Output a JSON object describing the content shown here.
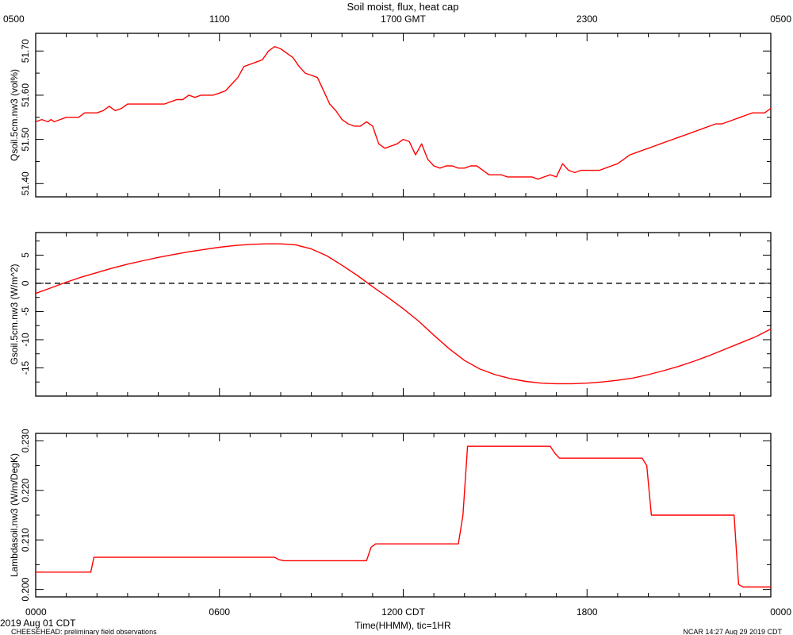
{
  "title": "Soil moist, flux, heat cap",
  "top_axis": {
    "label": "",
    "ticks": [
      {
        "hour": 0,
        "label": "0500"
      },
      {
        "hour": 6,
        "label": "1100"
      },
      {
        "hour": 12,
        "label": "1700 GMT"
      },
      {
        "hour": 18,
        "label": "2300"
      },
      {
        "hour": 24,
        "label": "0500"
      }
    ]
  },
  "bottom_axis": {
    "label": "Time(HHMM), tic=1HR",
    "ticks": [
      {
        "hour": 0,
        "label": "0000"
      },
      {
        "hour": 6,
        "label": "0600"
      },
      {
        "hour": 12,
        "label": "1200 CDT"
      },
      {
        "hour": 18,
        "label": "1800"
      },
      {
        "hour": 24,
        "label": "0000"
      }
    ]
  },
  "footer": {
    "date": "2019 Aug 01 CDT",
    "left": "CHEESEHEAD: preliminary field observations",
    "right": "NCAR 14:27 Aug 29 2019 CDT"
  },
  "line_color": "#ff0000",
  "chart_data": [
    {
      "type": "line",
      "name": "Qsoil",
      "ylabel": "Qsoil.5cm.nw3 (vol%)",
      "xlim": [
        0,
        24
      ],
      "ylim": [
        51.37,
        51.74
      ],
      "yticks": [
        51.4,
        51.5,
        51.6,
        51.7
      ],
      "ytick_labels": [
        "51.40",
        "51.50",
        "51.60",
        "51.70"
      ],
      "zero_line": false,
      "x": [
        0,
        0.2,
        0.4,
        0.5,
        0.6,
        0.8,
        1.0,
        1.2,
        1.4,
        1.6,
        1.8,
        2.0,
        2.2,
        2.4,
        2.6,
        2.8,
        3.0,
        3.5,
        4.0,
        4.2,
        4.4,
        4.6,
        4.8,
        5.0,
        5.2,
        5.4,
        5.6,
        5.8,
        6.0,
        6.2,
        6.4,
        6.6,
        6.8,
        7.0,
        7.2,
        7.4,
        7.6,
        7.8,
        8.0,
        8.2,
        8.4,
        8.6,
        8.8,
        9.0,
        9.2,
        9.4,
        9.6,
        9.8,
        10.0,
        10.2,
        10.4,
        10.6,
        10.8,
        11.0,
        11.2,
        11.4,
        11.6,
        11.8,
        12.0,
        12.2,
        12.4,
        12.6,
        12.8,
        13.0,
        13.2,
        13.4,
        13.6,
        13.8,
        14.0,
        14.2,
        14.4,
        14.6,
        14.8,
        15.0,
        15.2,
        15.4,
        15.6,
        15.8,
        16.0,
        16.2,
        16.4,
        16.6,
        16.8,
        17.0,
        17.2,
        17.4,
        17.6,
        17.8,
        18.0,
        18.2,
        18.4,
        18.6,
        18.8,
        19.0,
        19.2,
        19.4,
        19.6,
        19.8,
        20.0,
        20.2,
        20.4,
        20.6,
        20.8,
        21.0,
        21.2,
        21.4,
        21.6,
        21.8,
        22.0,
        22.2,
        22.4,
        22.6,
        22.8,
        23.0,
        23.2,
        23.4,
        23.6,
        23.8,
        24.0
      ],
      "y": [
        51.54,
        51.545,
        51.54,
        51.545,
        51.54,
        51.545,
        51.55,
        51.55,
        51.55,
        51.56,
        51.56,
        51.56,
        51.565,
        51.575,
        51.565,
        51.57,
        51.58,
        51.58,
        51.58,
        51.58,
        51.585,
        51.59,
        51.59,
        51.6,
        51.595,
        51.6,
        51.6,
        51.6,
        51.605,
        51.61,
        51.625,
        51.64,
        51.665,
        51.67,
        51.675,
        51.68,
        51.7,
        51.71,
        51.705,
        51.695,
        51.685,
        51.665,
        51.65,
        51.645,
        51.64,
        51.61,
        51.58,
        51.565,
        51.545,
        51.535,
        51.53,
        51.53,
        51.54,
        51.53,
        51.49,
        51.48,
        51.485,
        51.49,
        51.5,
        51.495,
        51.465,
        51.49,
        51.455,
        51.44,
        51.435,
        51.44,
        51.44,
        51.435,
        51.435,
        51.44,
        51.44,
        51.43,
        51.42,
        51.42,
        51.42,
        51.415,
        51.415,
        51.415,
        51.415,
        51.415,
        51.41,
        51.415,
        51.42,
        51.415,
        51.445,
        51.43,
        51.425,
        51.43,
        51.43,
        51.43,
        51.43,
        51.435,
        51.44,
        51.445,
        51.455,
        51.465,
        51.47,
        51.475,
        51.48,
        51.485,
        51.49,
        51.495,
        51.5,
        51.505,
        51.51,
        51.515,
        51.52,
        51.525,
        51.53,
        51.535,
        51.535,
        51.54,
        51.545,
        51.55,
        51.555,
        51.56,
        51.56,
        51.56,
        51.57
      ]
    },
    {
      "type": "line",
      "name": "Gsoil",
      "ylabel": "Gsoil.5cm.nw3 (W/m^2)",
      "xlim": [
        0,
        24
      ],
      "ylim": [
        -20,
        9
      ],
      "yticks": [
        -15,
        -10,
        -5,
        0,
        5
      ],
      "ytick_labels": [
        "-15",
        "-10",
        "-5",
        "0",
        "5"
      ],
      "zero_line": true,
      "x": [
        0,
        0.5,
        1.0,
        1.5,
        2.0,
        2.5,
        3.0,
        3.5,
        4.0,
        4.5,
        5.0,
        5.5,
        6.0,
        6.5,
        7.0,
        7.5,
        8.0,
        8.5,
        9.0,
        9.5,
        10.0,
        10.5,
        11.0,
        11.5,
        12.0,
        12.5,
        13.0,
        13.5,
        14.0,
        14.5,
        15.0,
        15.5,
        16.0,
        16.5,
        17.0,
        17.5,
        18.0,
        18.5,
        19.0,
        19.5,
        20.0,
        20.5,
        21.0,
        21.5,
        22.0,
        22.5,
        23.0,
        23.5,
        24.0
      ],
      "y": [
        -1.8,
        -0.8,
        0.2,
        1.1,
        1.9,
        2.7,
        3.4,
        4.0,
        4.6,
        5.1,
        5.6,
        6.0,
        6.4,
        6.7,
        6.9,
        7.0,
        7.0,
        6.8,
        6.1,
        4.9,
        3.2,
        1.4,
        -0.6,
        -2.5,
        -4.5,
        -6.7,
        -9.2,
        -11.6,
        -13.7,
        -15.2,
        -16.2,
        -16.9,
        -17.4,
        -17.7,
        -17.8,
        -17.8,
        -17.7,
        -17.5,
        -17.2,
        -16.8,
        -16.2,
        -15.5,
        -14.7,
        -13.8,
        -12.8,
        -11.7,
        -10.6,
        -9.5,
        -8.1
      ]
    },
    {
      "type": "line",
      "name": "Lambdasoil",
      "ylabel": "Lambdasoil.nw3 (W/m/DegK)",
      "xlim": [
        0,
        24
      ],
      "ylim": [
        0.1985,
        0.2315
      ],
      "yticks": [
        0.2,
        0.21,
        0.22,
        0.23
      ],
      "ytick_labels": [
        "0.200",
        "0.210",
        "0.220",
        "0.230"
      ],
      "zero_line": false,
      "x": [
        0,
        1.8,
        1.9,
        7.8,
        7.95,
        8.1,
        10.8,
        10.95,
        11.1,
        13.8,
        13.95,
        14.1,
        16.8,
        16.95,
        17.1,
        19.8,
        19.95,
        20.1,
        22.8,
        22.95,
        23.1,
        24.0
      ],
      "y": [
        0.2035,
        0.2035,
        0.2065,
        0.2065,
        0.206,
        0.2058,
        0.2058,
        0.2085,
        0.2092,
        0.2092,
        0.215,
        0.2289,
        0.2289,
        0.2275,
        0.2265,
        0.2265,
        0.225,
        0.215,
        0.215,
        0.201,
        0.2005,
        0.2005
      ]
    }
  ]
}
